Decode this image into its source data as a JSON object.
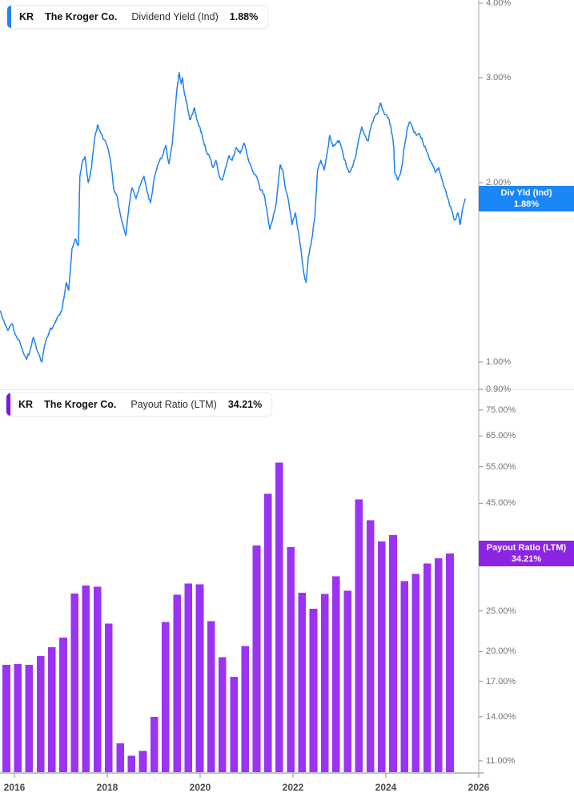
{
  "app": {
    "title": "KR stock chart — Dividend Yield and Payout Ratio"
  },
  "colors": {
    "line_blue": "#1e82ef",
    "flag_blue": "#1b86f5",
    "bar_purple": "#9a33f2",
    "flag_purple": "#8c24e4",
    "accent_blue": "#1b86f5",
    "accent_purple": "#7d13ef",
    "axis_line": "#c3c6c9",
    "x_axis_line": "#a9adb1",
    "divider": "#e7e8ea",
    "tick_text": "#6e7378",
    "year_text": "#45494e"
  },
  "panes": {
    "top": {
      "legend": {
        "ticker": "KR",
        "name": "The Kroger Co.",
        "metric": "Dividend Yield (Ind)",
        "value": "1.88%"
      },
      "flag": {
        "line1": "Div Yld (Ind)",
        "line2": "1.88%"
      }
    },
    "bottom": {
      "legend": {
        "ticker": "KR",
        "name": "The Kroger Co.",
        "metric": "Payout Ratio (LTM)",
        "value": "34.21%"
      },
      "flag": {
        "line1": "Payout Ratio (LTM)",
        "line2": "34.21%"
      }
    }
  },
  "chart_data": [
    {
      "type": "line",
      "title": "KR Dividend Yield (Ind)",
      "unit": "%",
      "yscale": "log",
      "current_value": 1.88,
      "y_ticks": [
        {
          "label": "4.00%",
          "v": 4.0
        },
        {
          "label": "3.00%",
          "v": 3.0
        },
        {
          "label": "2.00%",
          "v": 2.0
        },
        {
          "label": "1.00%",
          "v": 1.0
        },
        {
          "label": "0.90%",
          "v": 0.9
        }
      ],
      "ylim": [
        0.9,
        4.05
      ],
      "x_is_decimal_year": true,
      "points": [
        [
          2015.69,
          1.22
        ],
        [
          2015.78,
          1.17
        ],
        [
          2015.86,
          1.13
        ],
        [
          2015.95,
          1.16
        ],
        [
          2016.02,
          1.11
        ],
        [
          2016.1,
          1.09
        ],
        [
          2016.17,
          1.05
        ],
        [
          2016.26,
          1.01
        ],
        [
          2016.33,
          1.04
        ],
        [
          2016.41,
          1.1
        ],
        [
          2016.5,
          1.04
        ],
        [
          2016.59,
          1.0
        ],
        [
          2016.67,
          1.08
        ],
        [
          2016.76,
          1.13
        ],
        [
          2016.84,
          1.15
        ],
        [
          2016.93,
          1.19
        ],
        [
          2017.02,
          1.22
        ],
        [
          2017.08,
          1.3
        ],
        [
          2017.12,
          1.36
        ],
        [
          2017.17,
          1.32
        ],
        [
          2017.24,
          1.55
        ],
        [
          2017.31,
          1.61
        ],
        [
          2017.38,
          1.57
        ],
        [
          2017.41,
          2.05
        ],
        [
          2017.47,
          2.18
        ],
        [
          2017.52,
          2.21
        ],
        [
          2017.59,
          2.0
        ],
        [
          2017.66,
          2.12
        ],
        [
          2017.72,
          2.35
        ],
        [
          2017.79,
          2.5
        ],
        [
          2017.86,
          2.42
        ],
        [
          2017.93,
          2.36
        ],
        [
          2018.0,
          2.3
        ],
        [
          2018.07,
          2.18
        ],
        [
          2018.14,
          1.95
        ],
        [
          2018.21,
          1.9
        ],
        [
          2018.28,
          1.77
        ],
        [
          2018.35,
          1.68
        ],
        [
          2018.4,
          1.63
        ],
        [
          2018.47,
          1.83
        ],
        [
          2018.53,
          1.96
        ],
        [
          2018.62,
          1.88
        ],
        [
          2018.71,
          1.98
        ],
        [
          2018.79,
          2.05
        ],
        [
          2018.86,
          1.93
        ],
        [
          2018.93,
          1.85
        ],
        [
          2019.02,
          2.05
        ],
        [
          2019.1,
          2.15
        ],
        [
          2019.19,
          2.22
        ],
        [
          2019.26,
          2.31
        ],
        [
          2019.33,
          2.15
        ],
        [
          2019.4,
          2.32
        ],
        [
          2019.47,
          2.7
        ],
        [
          2019.52,
          2.95
        ],
        [
          2019.55,
          3.06
        ],
        [
          2019.59,
          2.93
        ],
        [
          2019.62,
          3.0
        ],
        [
          2019.67,
          2.8
        ],
        [
          2019.72,
          2.7
        ],
        [
          2019.78,
          2.55
        ],
        [
          2019.83,
          2.6
        ],
        [
          2019.88,
          2.67
        ],
        [
          2019.93,
          2.55
        ],
        [
          2020.0,
          2.47
        ],
        [
          2020.07,
          2.35
        ],
        [
          2020.14,
          2.25
        ],
        [
          2020.21,
          2.2
        ],
        [
          2020.28,
          2.12
        ],
        [
          2020.34,
          2.18
        ],
        [
          2020.41,
          2.05
        ],
        [
          2020.48,
          2.02
        ],
        [
          2020.55,
          2.12
        ],
        [
          2020.62,
          2.22
        ],
        [
          2020.69,
          2.18
        ],
        [
          2020.78,
          2.29
        ],
        [
          2020.86,
          2.24
        ],
        [
          2020.95,
          2.33
        ],
        [
          2021.03,
          2.2
        ],
        [
          2021.12,
          2.1
        ],
        [
          2021.21,
          2.05
        ],
        [
          2021.29,
          1.95
        ],
        [
          2021.38,
          1.91
        ],
        [
          2021.45,
          1.77
        ],
        [
          2021.5,
          1.67
        ],
        [
          2021.57,
          1.75
        ],
        [
          2021.64,
          1.85
        ],
        [
          2021.72,
          2.14
        ],
        [
          2021.78,
          2.1
        ],
        [
          2021.84,
          1.95
        ],
        [
          2021.91,
          1.85
        ],
        [
          2021.98,
          1.7
        ],
        [
          2022.05,
          1.78
        ],
        [
          2022.12,
          1.65
        ],
        [
          2022.19,
          1.5
        ],
        [
          2022.24,
          1.4
        ],
        [
          2022.28,
          1.36
        ],
        [
          2022.33,
          1.5
        ],
        [
          2022.4,
          1.6
        ],
        [
          2022.47,
          1.75
        ],
        [
          2022.53,
          2.1
        ],
        [
          2022.6,
          2.18
        ],
        [
          2022.67,
          2.1
        ],
        [
          2022.74,
          2.25
        ],
        [
          2022.79,
          2.4
        ],
        [
          2022.86,
          2.3
        ],
        [
          2022.93,
          2.33
        ],
        [
          2023.0,
          2.35
        ],
        [
          2023.07,
          2.25
        ],
        [
          2023.14,
          2.15
        ],
        [
          2023.21,
          2.08
        ],
        [
          2023.28,
          2.12
        ],
        [
          2023.34,
          2.2
        ],
        [
          2023.41,
          2.35
        ],
        [
          2023.48,
          2.48
        ],
        [
          2023.55,
          2.4
        ],
        [
          2023.62,
          2.35
        ],
        [
          2023.69,
          2.5
        ],
        [
          2023.76,
          2.58
        ],
        [
          2023.83,
          2.62
        ],
        [
          2023.88,
          2.72
        ],
        [
          2023.93,
          2.65
        ],
        [
          2024.0,
          2.6
        ],
        [
          2024.07,
          2.55
        ],
        [
          2024.14,
          2.4
        ],
        [
          2024.17,
          2.3
        ],
        [
          2024.19,
          2.08
        ],
        [
          2024.26,
          2.02
        ],
        [
          2024.33,
          2.1
        ],
        [
          2024.4,
          2.3
        ],
        [
          2024.47,
          2.48
        ],
        [
          2024.52,
          2.53
        ],
        [
          2024.59,
          2.45
        ],
        [
          2024.66,
          2.4
        ],
        [
          2024.72,
          2.42
        ],
        [
          2024.79,
          2.35
        ],
        [
          2024.86,
          2.28
        ],
        [
          2024.93,
          2.2
        ],
        [
          2025.0,
          2.15
        ],
        [
          2025.07,
          2.08
        ],
        [
          2025.14,
          2.12
        ],
        [
          2025.21,
          2.02
        ],
        [
          2025.28,
          1.95
        ],
        [
          2025.34,
          1.88
        ],
        [
          2025.41,
          1.8
        ],
        [
          2025.48,
          1.73
        ],
        [
          2025.55,
          1.78
        ],
        [
          2025.6,
          1.7
        ],
        [
          2025.66,
          1.82
        ],
        [
          2025.71,
          1.88
        ]
      ]
    },
    {
      "type": "bar",
      "title": "KR Payout Ratio (LTM)",
      "unit": "%",
      "yscale": "log",
      "current_value": 34.21,
      "y_ticks": [
        {
          "label": "75.00%",
          "v": 75
        },
        {
          "label": "65.00%",
          "v": 65
        },
        {
          "label": "55.00%",
          "v": 55
        },
        {
          "label": "45.00%",
          "v": 45
        },
        {
          "label": "25.00%",
          "v": 25
        },
        {
          "label": "20.00%",
          "v": 20
        },
        {
          "label": "17.00%",
          "v": 17
        },
        {
          "label": "14.00%",
          "v": 14
        },
        {
          "label": "11.00%",
          "v": 11
        }
      ],
      "categories": [
        "2015-Q3",
        "2015-Q4",
        "2016-Q1",
        "2016-Q2",
        "2016-Q3",
        "2016-Q4",
        "2017-Q1",
        "2017-Q2",
        "2017-Q3",
        "2017-Q4",
        "2018-Q1",
        "2018-Q2",
        "2018-Q3",
        "2018-Q4",
        "2019-Q1",
        "2019-Q2",
        "2019-Q3",
        "2019-Q4",
        "2020-Q1",
        "2020-Q2",
        "2020-Q3",
        "2020-Q4",
        "2021-Q1",
        "2021-Q2",
        "2021-Q3",
        "2021-Q4",
        "2022-Q1",
        "2022-Q2",
        "2022-Q3",
        "2022-Q4",
        "2023-Q1",
        "2023-Q2",
        "2023-Q3",
        "2023-Q4",
        "2024-Q1",
        "2024-Q2",
        "2024-Q3",
        "2024-Q4",
        "2025-Q1",
        "2025-Q2"
      ],
      "values": [
        18.6,
        18.7,
        18.6,
        19.5,
        20.5,
        21.6,
        27.5,
        28.7,
        28.5,
        23.3,
        12.1,
        11.3,
        11.6,
        14.0,
        23.5,
        27.3,
        29.0,
        28.9,
        23.6,
        19.4,
        17.4,
        20.6,
        35.7,
        47.4,
        56.3,
        35.4,
        27.6,
        25.3,
        27.4,
        30.2,
        27.9,
        46.0,
        41.0,
        36.5,
        37.8,
        29.4,
        30.6,
        32.4,
        33.3,
        34.21
      ]
    }
  ],
  "x_axis": {
    "ticks": [
      {
        "label": "2016",
        "year": 2016
      },
      {
        "label": "2018",
        "year": 2018
      },
      {
        "label": "2020",
        "year": 2020
      },
      {
        "label": "2022",
        "year": 2022
      },
      {
        "label": "2024",
        "year": 2024
      },
      {
        "label": "2026",
        "year": 2026
      }
    ]
  }
}
